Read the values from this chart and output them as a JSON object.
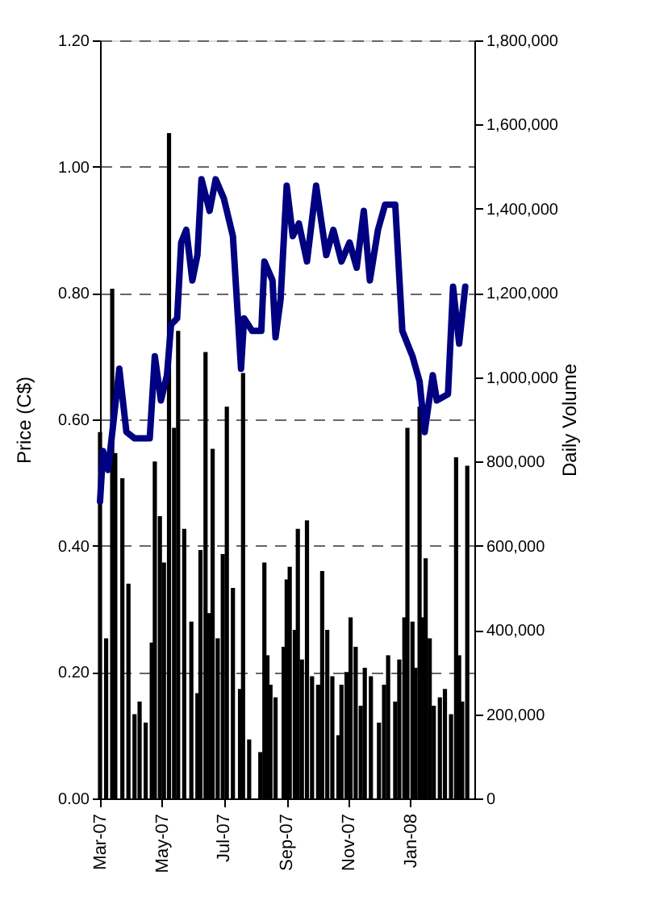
{
  "chart_data": {
    "type": "line",
    "ylabel": "Price (C$)",
    "y2label": "Daily Volume",
    "grid": "y",
    "xlim": [
      "2007-03-01",
      "2008-03-04"
    ],
    "xticks": [
      {
        "value": "2007-03-01",
        "label": "Mar-07"
      },
      {
        "value": "2007-05-01",
        "label": "May-07"
      },
      {
        "value": "2007-07-01",
        "label": "Jul-07"
      },
      {
        "value": "2007-09-01",
        "label": "Sep-07"
      },
      {
        "value": "2007-11-01",
        "label": "Nov-07"
      },
      {
        "value": "2008-01-01",
        "label": "Jan-08"
      }
    ],
    "ylim": [
      0,
      1.2
    ],
    "yticks": [
      {
        "value": 0,
        "label": "0.00"
      },
      {
        "value": 0.2,
        "label": "0.20"
      },
      {
        "value": 0.4,
        "label": "0.40"
      },
      {
        "value": 0.6,
        "label": "0.60"
      },
      {
        "value": 0.8,
        "label": "0.80"
      },
      {
        "value": 1.0,
        "label": "1.00"
      },
      {
        "value": 1.2,
        "label": "1.20"
      }
    ],
    "y2lim": [
      0,
      1800000
    ],
    "y2ticks": [
      {
        "value": 0,
        "label": "0"
      },
      {
        "value": 200000,
        "label": "200,000"
      },
      {
        "value": 400000,
        "label": "400,000"
      },
      {
        "value": 600000,
        "label": "600,000"
      },
      {
        "value": 800000,
        "label": "800,000"
      },
      {
        "value": 1000000,
        "label": "1,000,000"
      },
      {
        "value": 1200000,
        "label": "1,200,000"
      },
      {
        "value": 1400000,
        "label": "1,400,000"
      },
      {
        "value": 1600000,
        "label": "1,600,000"
      },
      {
        "value": 1800000,
        "label": "1,800,000"
      }
    ],
    "series": [
      {
        "type": "bar",
        "axis": "y2",
        "color": "#000000",
        "x": [
          "2007-03-01",
          "2007-03-07",
          "2007-03-13",
          "2007-03-16",
          "2007-03-23",
          "2007-03-29",
          "2007-04-04",
          "2007-04-09",
          "2007-04-15",
          "2007-04-21",
          "2007-04-24",
          "2007-04-29",
          "2007-05-03",
          "2007-05-08",
          "2007-05-13",
          "2007-05-17",
          "2007-05-23",
          "2007-05-30",
          "2007-06-05",
          "2007-06-08",
          "2007-06-13",
          "2007-06-16",
          "2007-06-20",
          "2007-06-25",
          "2007-06-30",
          "2007-07-04",
          "2007-07-10",
          "2007-07-17",
          "2007-07-20",
          "2007-07-26",
          "2007-08-06",
          "2007-08-10",
          "2007-08-13",
          "2007-08-16",
          "2007-08-21",
          "2007-08-29",
          "2007-09-01",
          "2007-09-04",
          "2007-09-09",
          "2007-09-12",
          "2007-09-16",
          "2007-09-21",
          "2007-09-26",
          "2007-10-02",
          "2007-10-06",
          "2007-10-11",
          "2007-10-16",
          "2007-10-22",
          "2007-10-25",
          "2007-10-30",
          "2007-11-03",
          "2007-11-08",
          "2007-11-13",
          "2007-11-17",
          "2007-11-23",
          "2007-12-01",
          "2007-12-06",
          "2007-12-10",
          "2007-12-17",
          "2007-12-21",
          "2007-12-26",
          "2007-12-29",
          "2008-01-03",
          "2008-01-06",
          "2008-01-10",
          "2008-01-13",
          "2008-01-16",
          "2008-01-20",
          "2008-01-24",
          "2008-01-30",
          "2008-02-04",
          "2008-02-10",
          "2008-02-15",
          "2008-02-18",
          "2008-02-21",
          "2008-02-26"
        ],
        "values": [
          870000,
          380000,
          1210000,
          820000,
          760000,
          510000,
          200000,
          230000,
          180000,
          370000,
          800000,
          670000,
          560000,
          1580000,
          880000,
          1110000,
          640000,
          420000,
          250000,
          590000,
          1060000,
          440000,
          830000,
          380000,
          580000,
          930000,
          500000,
          260000,
          1010000,
          140000,
          110000,
          560000,
          340000,
          270000,
          240000,
          360000,
          520000,
          550000,
          400000,
          640000,
          330000,
          660000,
          290000,
          270000,
          540000,
          400000,
          290000,
          150000,
          270000,
          300000,
          430000,
          360000,
          220000,
          310000,
          290000,
          180000,
          270000,
          340000,
          230000,
          330000,
          430000,
          880000,
          420000,
          310000,
          930000,
          430000,
          570000,
          380000,
          220000,
          240000,
          260000,
          200000,
          810000,
          340000,
          230000,
          790000
        ]
      },
      {
        "color": "#000080",
        "x": [
          "2007-03-01",
          "2007-03-04",
          "2007-03-09",
          "2007-03-20",
          "2007-03-27",
          "2007-04-04",
          "2007-04-19",
          "2007-04-24",
          "2007-04-30",
          "2007-05-06",
          "2007-05-10",
          "2007-05-16",
          "2007-05-20",
          "2007-05-25",
          "2007-05-31",
          "2007-06-05",
          "2007-06-09",
          "2007-06-17",
          "2007-06-23",
          "2007-07-01",
          "2007-07-10",
          "2007-07-18",
          "2007-07-21",
          "2007-07-29",
          "2007-08-07",
          "2007-08-10",
          "2007-08-18",
          "2007-08-21",
          "2007-08-26",
          "2007-09-01",
          "2007-09-07",
          "2007-09-13",
          "2007-09-21",
          "2007-09-30",
          "2007-10-10",
          "2007-10-17",
          "2007-10-25",
          "2007-11-02",
          "2007-11-09",
          "2007-11-16",
          "2007-11-22",
          "2007-11-30",
          "2007-12-07",
          "2007-12-17",
          "2007-12-24",
          "2008-01-03",
          "2008-01-10",
          "2008-01-15",
          "2008-01-23",
          "2008-01-27",
          "2008-02-07",
          "2008-02-12",
          "2008-02-18",
          "2008-02-24"
        ],
        "values": [
          0.47,
          0.55,
          0.52,
          0.68,
          0.58,
          0.57,
          0.57,
          0.7,
          0.63,
          0.67,
          0.75,
          0.76,
          0.88,
          0.9,
          0.82,
          0.86,
          0.98,
          0.93,
          0.98,
          0.95,
          0.89,
          0.68,
          0.76,
          0.74,
          0.74,
          0.85,
          0.82,
          0.73,
          0.79,
          0.97,
          0.89,
          0.91,
          0.85,
          0.97,
          0.86,
          0.9,
          0.85,
          0.88,
          0.84,
          0.93,
          0.82,
          0.9,
          0.94,
          0.94,
          0.74,
          0.7,
          0.66,
          0.58,
          0.67,
          0.63,
          0.64,
          0.81,
          0.72,
          0.81
        ]
      }
    ]
  }
}
